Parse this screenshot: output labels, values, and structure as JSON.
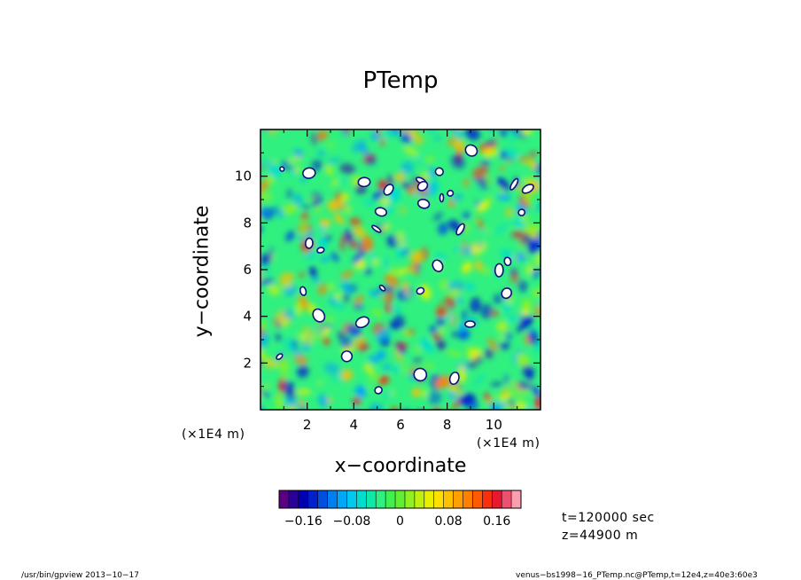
{
  "chart_data": {
    "type": "heatmap",
    "title": "PTemp",
    "xlabel": "x−coordinate",
    "ylabel": "y−coordinate",
    "x_unit": "(×1E4 m)",
    "y_unit": "(×1E4 m)",
    "xlim": [
      0,
      12
    ],
    "ylim": [
      0,
      12
    ],
    "x_ticks": [
      2,
      4,
      6,
      8,
      10
    ],
    "y_ticks": [
      2,
      4,
      6,
      8,
      10
    ],
    "x_tick_labels": [
      "2",
      "4",
      "6",
      "8",
      "10"
    ],
    "y_tick_labels": [
      "2",
      "4",
      "6",
      "8",
      "10"
    ],
    "colorbar": {
      "range": [
        -0.2,
        0.2
      ],
      "ticks": [
        -0.16,
        -0.08,
        0,
        0.08,
        0.16
      ],
      "tick_labels": [
        "−0.16",
        "−0.08",
        "0",
        "0.08",
        "0.16"
      ],
      "colors": [
        "#5a0080",
        "#2a0099",
        "#0000b3",
        "#0020cc",
        "#0050e0",
        "#0080f0",
        "#00a8f8",
        "#00c8f0",
        "#00dcd0",
        "#10e8a8",
        "#30f080",
        "#40f050",
        "#60f030",
        "#90f020",
        "#c0f010",
        "#e8f000",
        "#ffe000",
        "#ffc000",
        "#ffa000",
        "#ff8000",
        "#ff5a00",
        "#f83010",
        "#e81830",
        "#f05070",
        "#f8a0b0"
      ]
    },
    "annotations": [
      "t=120000 sec",
      "z=44900  m"
    ]
  },
  "footer": {
    "left": "/usr/bin/gpview   2013−10−17",
    "right": "venus−bs1998−16_PTemp.nc@PTemp,t=12e4,z=40e3:60e3"
  }
}
